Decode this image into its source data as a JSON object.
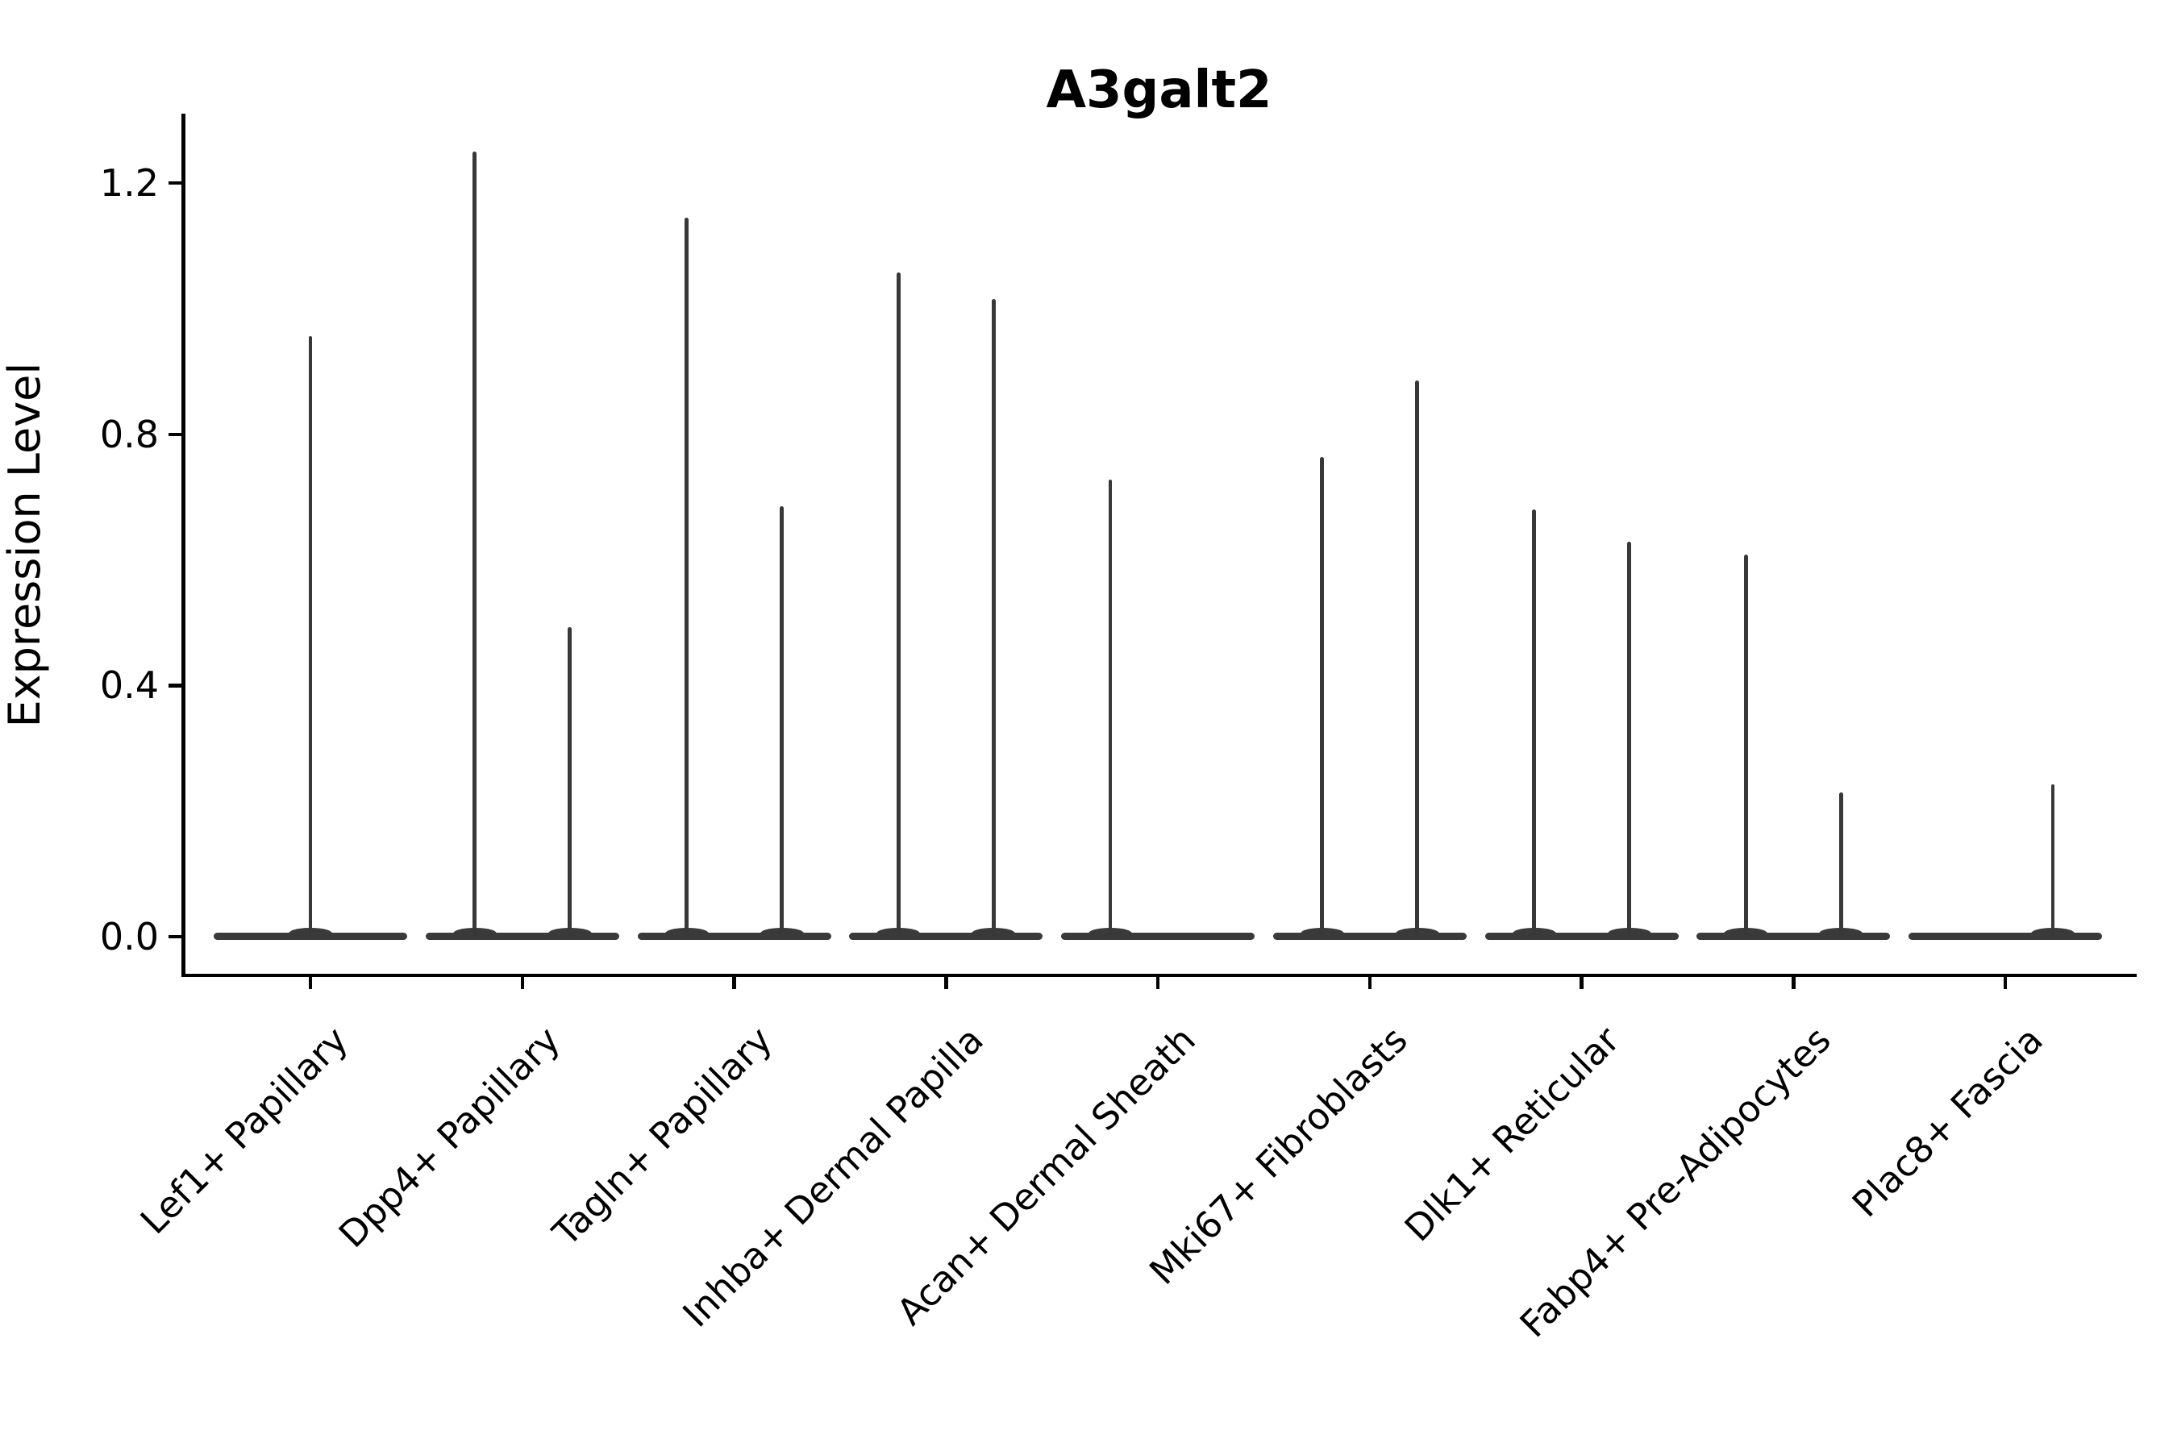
{
  "chart_data": {
    "type": "violin",
    "title": "A3galt2",
    "ylabel": "Expression Level",
    "xlabel": "",
    "grid": false,
    "legend": "none",
    "y_ticks": [
      0.0,
      0.4,
      0.8,
      1.2
    ],
    "ylim": [
      -0.063,
      1.318
    ],
    "violin_color": "#3a3a3a",
    "axis_color": "#000000",
    "categories": [
      "Lef1+ Papillary",
      "Dpp4+ Papillary",
      "Tagln+ Papillary",
      "Inhba+ Dermal Papilla",
      "Acan+ Dermal Sheath",
      "Mki67+ Fibroblasts",
      "Dlk1+ Reticular",
      "Fabp4+ Pre-Adipocytes",
      "Plac8+ Fascia"
    ],
    "violins": [
      {
        "category": "Lef1+ Papillary",
        "spikes": [
          {
            "pos": "center",
            "max": 0.956
          }
        ]
      },
      {
        "category": "Dpp4+ Papillary",
        "spikes": [
          {
            "pos": "left",
            "max": 1.25
          },
          {
            "pos": "right",
            "max": 0.493
          }
        ]
      },
      {
        "category": "Tagln+ Papillary",
        "spikes": [
          {
            "pos": "left",
            "max": 1.145
          },
          {
            "pos": "right",
            "max": 0.685
          }
        ]
      },
      {
        "category": "Inhba+ Dermal Papilla",
        "spikes": [
          {
            "pos": "left",
            "max": 1.058
          },
          {
            "pos": "right",
            "max": 1.015
          }
        ]
      },
      {
        "category": "Acan+ Dermal Sheath",
        "spikes": [
          {
            "pos": "left",
            "max": 0.728
          }
        ]
      },
      {
        "category": "Mki67+ Fibroblasts",
        "spikes": [
          {
            "pos": "left",
            "max": 0.764
          },
          {
            "pos": "right",
            "max": 0.886
          }
        ]
      },
      {
        "category": "Dlk1+ Reticular",
        "spikes": [
          {
            "pos": "left",
            "max": 0.68
          },
          {
            "pos": "right",
            "max": 0.629
          }
        ]
      },
      {
        "category": "Fabp4+ Pre-Adipocytes",
        "spikes": [
          {
            "pos": "left",
            "max": 0.608
          },
          {
            "pos": "right",
            "max": 0.23
          }
        ]
      },
      {
        "category": "Plac8+ Fascia",
        "spikes": [
          {
            "pos": "right",
            "max": 0.243
          }
        ]
      }
    ]
  }
}
